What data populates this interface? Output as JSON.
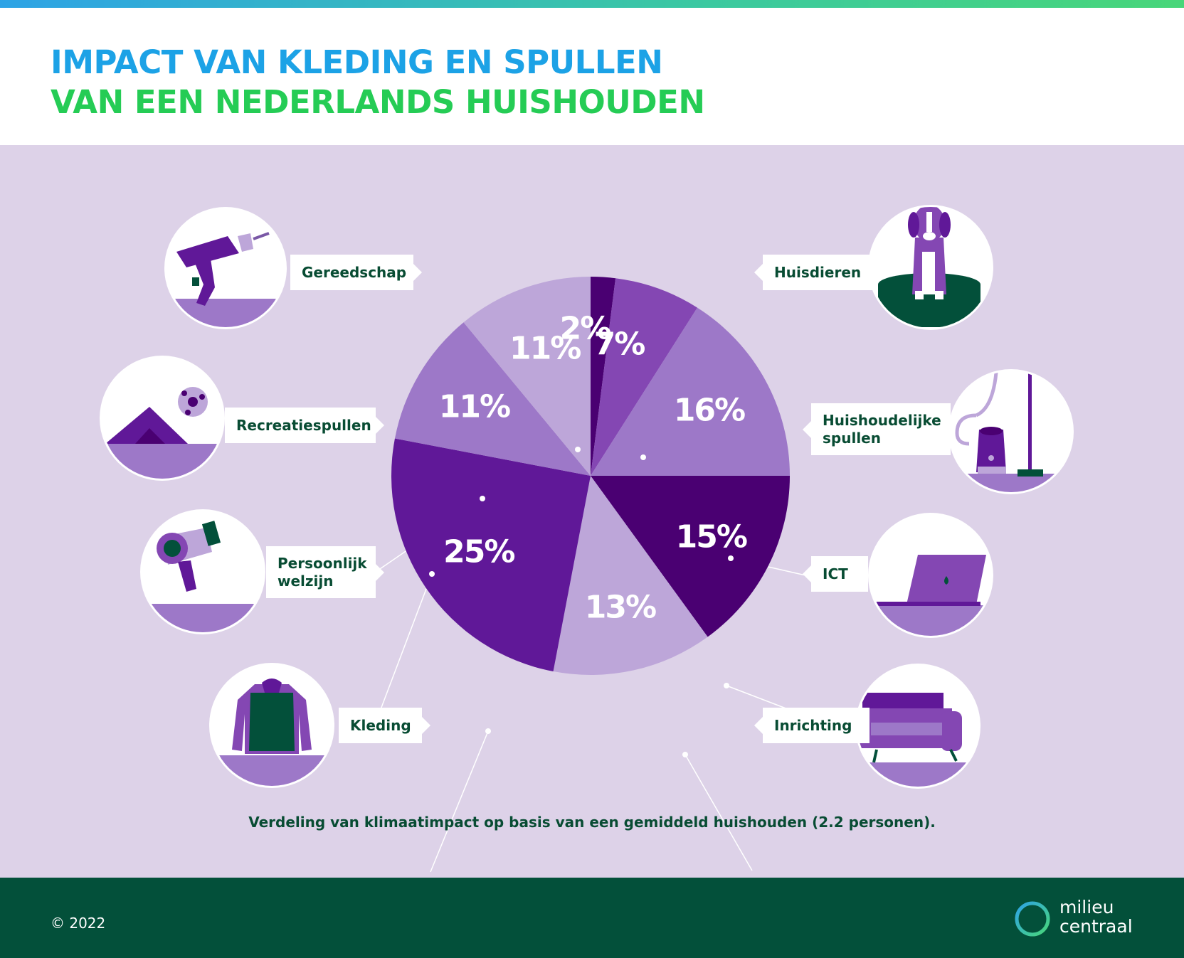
{
  "header": {
    "title_line1": "IMPACT VAN KLEDING EN SPULLEN",
    "title_line2": "VAN EEN NEDERLANDS HUISHOUDEN"
  },
  "chart_data": {
    "type": "pie",
    "title": "IMPACT VAN KLEDING EN SPULLEN VAN EEN NEDERLANDS HUISHOUDEN",
    "unit": "%",
    "slices": [
      {
        "label": "Gereedschap",
        "value": 2,
        "value_label": "2%",
        "color": "#4a0072"
      },
      {
        "label": "Huisdieren",
        "value": 7,
        "value_label": "7%",
        "color": "#8447b3"
      },
      {
        "label": "Huishoudelijke spullen",
        "value": 16,
        "value_label": "16%",
        "color": "#9d78c8"
      },
      {
        "label": "ICT",
        "value": 15,
        "value_label": "15%",
        "color": "#4a0072"
      },
      {
        "label": "Inrichting",
        "value": 13,
        "value_label": "13%",
        "color": "#bda6d9"
      },
      {
        "label": "Kleding",
        "value": 25,
        "value_label": "25%",
        "color": "#601898"
      },
      {
        "label": "Persoonlijk welzijn",
        "value": 11,
        "value_label": "11%",
        "color": "#9d78c8"
      },
      {
        "label": "Recreatiespullen",
        "value": 11,
        "value_label": "11%",
        "color": "#bda6d9"
      }
    ]
  },
  "categories": {
    "gereedschap": "Gereedschap",
    "huisdieren": "Huisdieren",
    "huishoudelijk_line1": "Huishoudelijke",
    "huishoudelijk_line2": "spullen",
    "ict": "ICT",
    "inrichting": "Inrichting",
    "kleding": "Kleding",
    "persoonlijk_line1": "Persoonlijk",
    "persoonlijk_line2": "welzijn",
    "recreatie": "Recreatiespullen"
  },
  "icons": [
    "drill-icon",
    "tent-icon",
    "ball-icon",
    "hairdryer-icon",
    "hoodie-icon",
    "dog-icon",
    "vacuum-icon",
    "laptop-icon",
    "sofa-icon"
  ],
  "caption": "Verdeling van klimaatimpact op basis van een gemiddeld huishouden (2.2 personen).",
  "footer": {
    "copyright": "© 2022",
    "logo_line1": "milieu",
    "logo_line2": "centraal"
  },
  "colors": {
    "title_blue": "#1ca2e6",
    "title_green": "#25cc55",
    "panel": "#ddd2e8",
    "footer": "#03503a",
    "text_dark_green": "#084c33"
  }
}
